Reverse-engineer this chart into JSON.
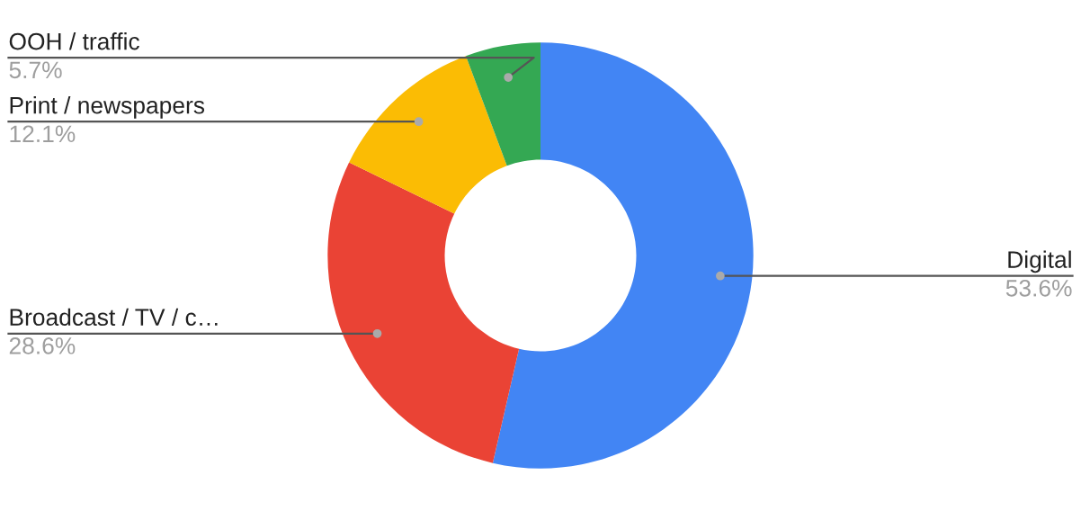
{
  "chart_data": {
    "type": "donut",
    "categories": [
      "Digital",
      "Broadcast / TV / c…",
      "Print / newspapers",
      "OOH / traffic"
    ],
    "values": [
      53.6,
      28.6,
      12.1,
      5.7
    ],
    "colors": [
      "#4285f4",
      "#ea4335",
      "#fbbc04",
      "#34a853"
    ],
    "value_labels": [
      "53.6%",
      "28.6%",
      "12.1%",
      "5.7%"
    ],
    "legend": false
  }
}
